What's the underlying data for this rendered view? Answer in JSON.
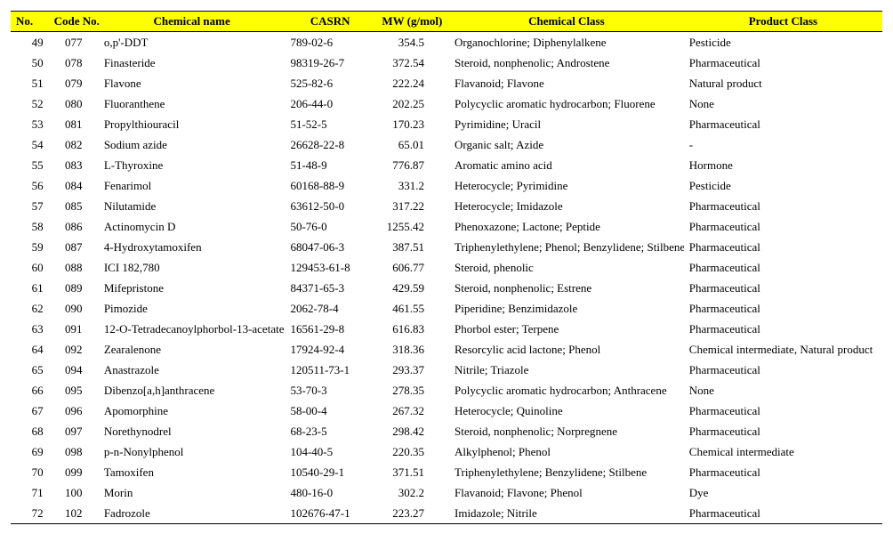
{
  "table": {
    "columns": [
      "No.",
      "Code No.",
      "Chemical name",
      "CASRN",
      "MW (g/mol)",
      "Chemical Class",
      "Product Class"
    ],
    "header_bg": "#ffff00",
    "border_color": "#000000",
    "font_family": "Times New Roman",
    "font_size_pt": 10,
    "rows": [
      [
        "49",
        "077",
        "o,p'-DDT",
        "789-02-6",
        "354.5",
        "Organochlorine; Diphenylalkene",
        "Pesticide"
      ],
      [
        "50",
        "078",
        "Finasteride",
        "98319-26-7",
        "372.54",
        "Steroid, nonphenolic; Androstene",
        "Pharmaceutical"
      ],
      [
        "51",
        "079",
        "Flavone",
        "525-82-6",
        "222.24",
        "Flavanoid; Flavone",
        "Natural product"
      ],
      [
        "52",
        "080",
        "Fluoranthene",
        "206-44-0",
        "202.25",
        "Polycyclic aromatic hydrocarbon; Fluorene",
        "None"
      ],
      [
        "53",
        "081",
        "Propylthiouracil",
        "51-52-5",
        "170.23",
        "Pyrimidine; Uracil",
        "Pharmaceutical"
      ],
      [
        "54",
        "082",
        "Sodium azide",
        "26628-22-8",
        "65.01",
        "Organic salt; Azide",
        "-"
      ],
      [
        "55",
        "083",
        "L-Thyroxine",
        "51-48-9",
        "776.87",
        "Aromatic amino acid",
        "Hormone"
      ],
      [
        "56",
        "084",
        "Fenarimol",
        "60168-88-9",
        "331.2",
        "Heterocycle; Pyrimidine",
        "Pesticide"
      ],
      [
        "57",
        "085",
        "Nilutamide",
        "63612-50-0",
        "317.22",
        "Heterocycle; Imidazole",
        "Pharmaceutical"
      ],
      [
        "58",
        "086",
        "Actinomycin D",
        "50-76-0",
        "1255.42",
        "Phenoxazone; Lactone; Peptide",
        "Pharmaceutical"
      ],
      [
        "59",
        "087",
        "4-Hydroxytamoxifen",
        "68047-06-3",
        "387.51",
        "Triphenylethylene; Phenol; Benzylidene; Stilbene",
        "Pharmaceutical"
      ],
      [
        "60",
        "088",
        "ICI 182,780",
        "129453-61-8",
        "606.77",
        "Steroid, phenolic",
        "Pharmaceutical"
      ],
      [
        "61",
        "089",
        "Mifepristone",
        "84371-65-3",
        "429.59",
        "Steroid, nonphenolic; Estrene",
        "Pharmaceutical"
      ],
      [
        "62",
        "090",
        "Pimozide",
        "2062-78-4",
        "461.55",
        "Piperidine; Benzimidazole",
        "Pharmaceutical"
      ],
      [
        "63",
        "091",
        "12-O-Tetradecanoylphorbol-13-acetate",
        "16561-29-8",
        "616.83",
        "Phorbol ester; Terpene",
        "Pharmaceutical"
      ],
      [
        "64",
        "092",
        "Zearalenone",
        "17924-92-4",
        "318.36",
        "Resorcylic acid lactone; Phenol",
        "Chemical intermediate, Natural product"
      ],
      [
        "65",
        "094",
        "Anastrazole",
        "120511-73-1",
        "293.37",
        "Nitrile; Triazole",
        "Pharmaceutical"
      ],
      [
        "66",
        "095",
        "Dibenzo[a,h]anthracene",
        "53-70-3",
        "278.35",
        "Polycyclic aromatic hydrocarbon; Anthracene",
        "None"
      ],
      [
        "67",
        "096",
        "Apomorphine",
        "58-00-4",
        "267.32",
        "Heterocycle; Quinoline",
        "Pharmaceutical"
      ],
      [
        "68",
        "097",
        "Norethynodrel",
        "68-23-5",
        "298.42",
        "Steroid, nonphenolic; Norpregnene",
        "Pharmaceutical"
      ],
      [
        "69",
        "098",
        "p-n-Nonylphenol",
        "104-40-5",
        "220.35",
        "Alkylphenol; Phenol",
        "Chemical intermediate"
      ],
      [
        "70",
        "099",
        "Tamoxifen",
        "10540-29-1",
        "371.51",
        "Triphenylethylene; Benzylidene; Stilbene",
        "Pharmaceutical"
      ],
      [
        "71",
        "100",
        "Morin",
        "480-16-0",
        "302.2",
        "Flavanoid; Flavone; Phenol",
        "Dye"
      ],
      [
        "72",
        "102",
        "Fadrozole",
        "102676-47-1",
        "223.27",
        "Imidazole; Nitrile",
        "Pharmaceutical"
      ]
    ]
  }
}
